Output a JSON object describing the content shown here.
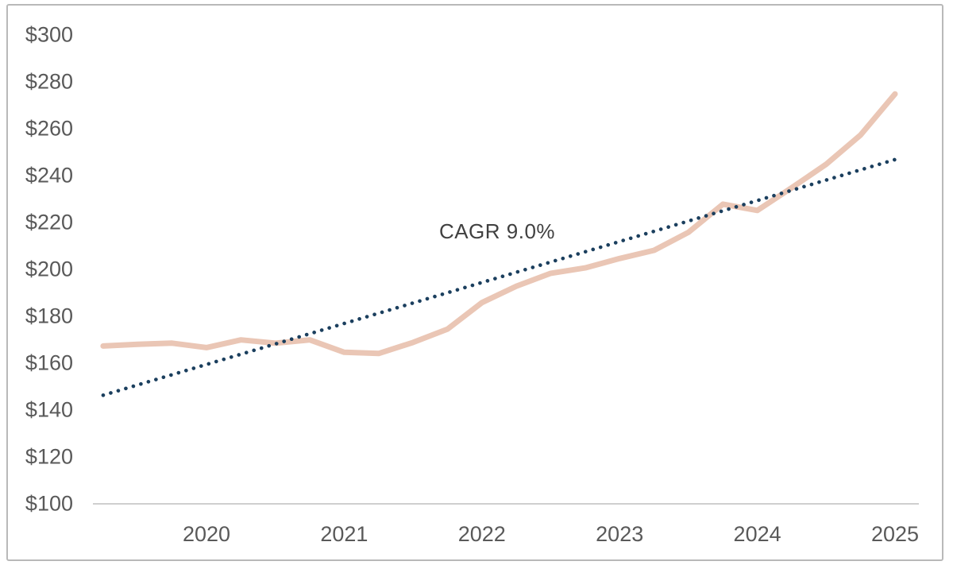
{
  "chart_data": {
    "type": "line",
    "title": "",
    "annotation": {
      "text": "CAGR 9.0%",
      "x": 2022.1,
      "y": 216
    },
    "x_axis": {
      "tick_labels": [
        "2020",
        "2021",
        "2022",
        "2023",
        "2024",
        "2025"
      ],
      "tick_values": [
        2020,
        2021,
        2022,
        2023,
        2024,
        2025
      ],
      "range": [
        2019.17,
        2025.17
      ]
    },
    "y_axis": {
      "tick_labels": [
        "$300",
        "$280",
        "$260",
        "$240",
        "$220",
        "$200",
        "$180",
        "$160",
        "$140",
        "$120",
        "$100"
      ],
      "tick_values": [
        300,
        280,
        260,
        240,
        220,
        200,
        180,
        160,
        140,
        120,
        100
      ],
      "range": [
        100,
        300
      ],
      "unit_prefix": "$"
    },
    "series": [
      {
        "name": "value-line",
        "line_style": "solid",
        "color": "#eac6b5",
        "stroke_width": 7,
        "x": [
          2019.25,
          2019.5,
          2019.75,
          2020.0,
          2020.25,
          2020.5,
          2020.75,
          2021.0,
          2021.25,
          2021.5,
          2021.75,
          2022.0,
          2022.25,
          2022.5,
          2022.75,
          2023.0,
          2023.25,
          2023.5,
          2023.75,
          2024.0,
          2024.25,
          2024.5,
          2024.75,
          2025.0
        ],
        "values": [
          167.0,
          167.7,
          168.2,
          166.3,
          169.6,
          168.2,
          169.6,
          164.3,
          163.8,
          168.5,
          174.2,
          185.5,
          192.5,
          198.0,
          200.3,
          204.3,
          207.8,
          215.5,
          227.5,
          224.8,
          234.5,
          244.5,
          257.0,
          274.5
        ]
      },
      {
        "name": "cagr-trendline",
        "line_style": "dotted",
        "color": "#1b3f5e",
        "stroke_width": 4.6,
        "x": [
          2019.25,
          2025.0
        ],
        "values": [
          146.0,
          246.5
        ]
      }
    ],
    "grid": false,
    "legend_position": "none",
    "colors": {
      "axis_line": "#bfbfbf",
      "tick_text": "#595959",
      "annotation_text": "#404040",
      "frame_border": "#b9b9b9",
      "background": "#ffffff"
    }
  }
}
